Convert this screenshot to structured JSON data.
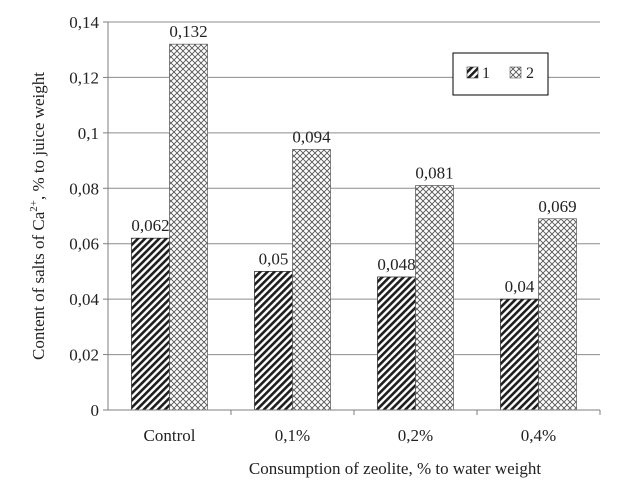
{
  "chart_data": {
    "type": "bar",
    "categories": [
      "Control",
      "0,1%",
      "0,2%",
      "0,4%"
    ],
    "series": [
      {
        "name": "1",
        "values": [
          0.062,
          0.05,
          0.048,
          0.04
        ],
        "labels": [
          "0,062",
          "0,05",
          "0,048",
          "0,04"
        ],
        "pattern": "diagonal-stripes"
      },
      {
        "name": "2",
        "values": [
          0.132,
          0.094,
          0.081,
          0.069
        ],
        "labels": [
          "0,132",
          "0,094",
          "0,081",
          "0,069"
        ],
        "pattern": "crosshatch"
      }
    ],
    "yticks": [
      {
        "value": 0,
        "label": "0"
      },
      {
        "value": 0.02,
        "label": "0,02"
      },
      {
        "value": 0.04,
        "label": "0,04"
      },
      {
        "value": 0.06,
        "label": "0,06"
      },
      {
        "value": 0.08,
        "label": "0,08"
      },
      {
        "value": 0.1,
        "label": "0,1"
      },
      {
        "value": 0.12,
        "label": "0,12"
      },
      {
        "value": 0.14,
        "label": "0,14"
      }
    ],
    "ylim": [
      0,
      0.14
    ],
    "ylabel_prefix": "Content of salts of Ca",
    "ylabel_sup": "2+",
    "ylabel_suffix": ", % to juice weight",
    "xlabel": "Consumption of zeolite, % to water weight",
    "grid": true,
    "legend_position": "top-right"
  }
}
